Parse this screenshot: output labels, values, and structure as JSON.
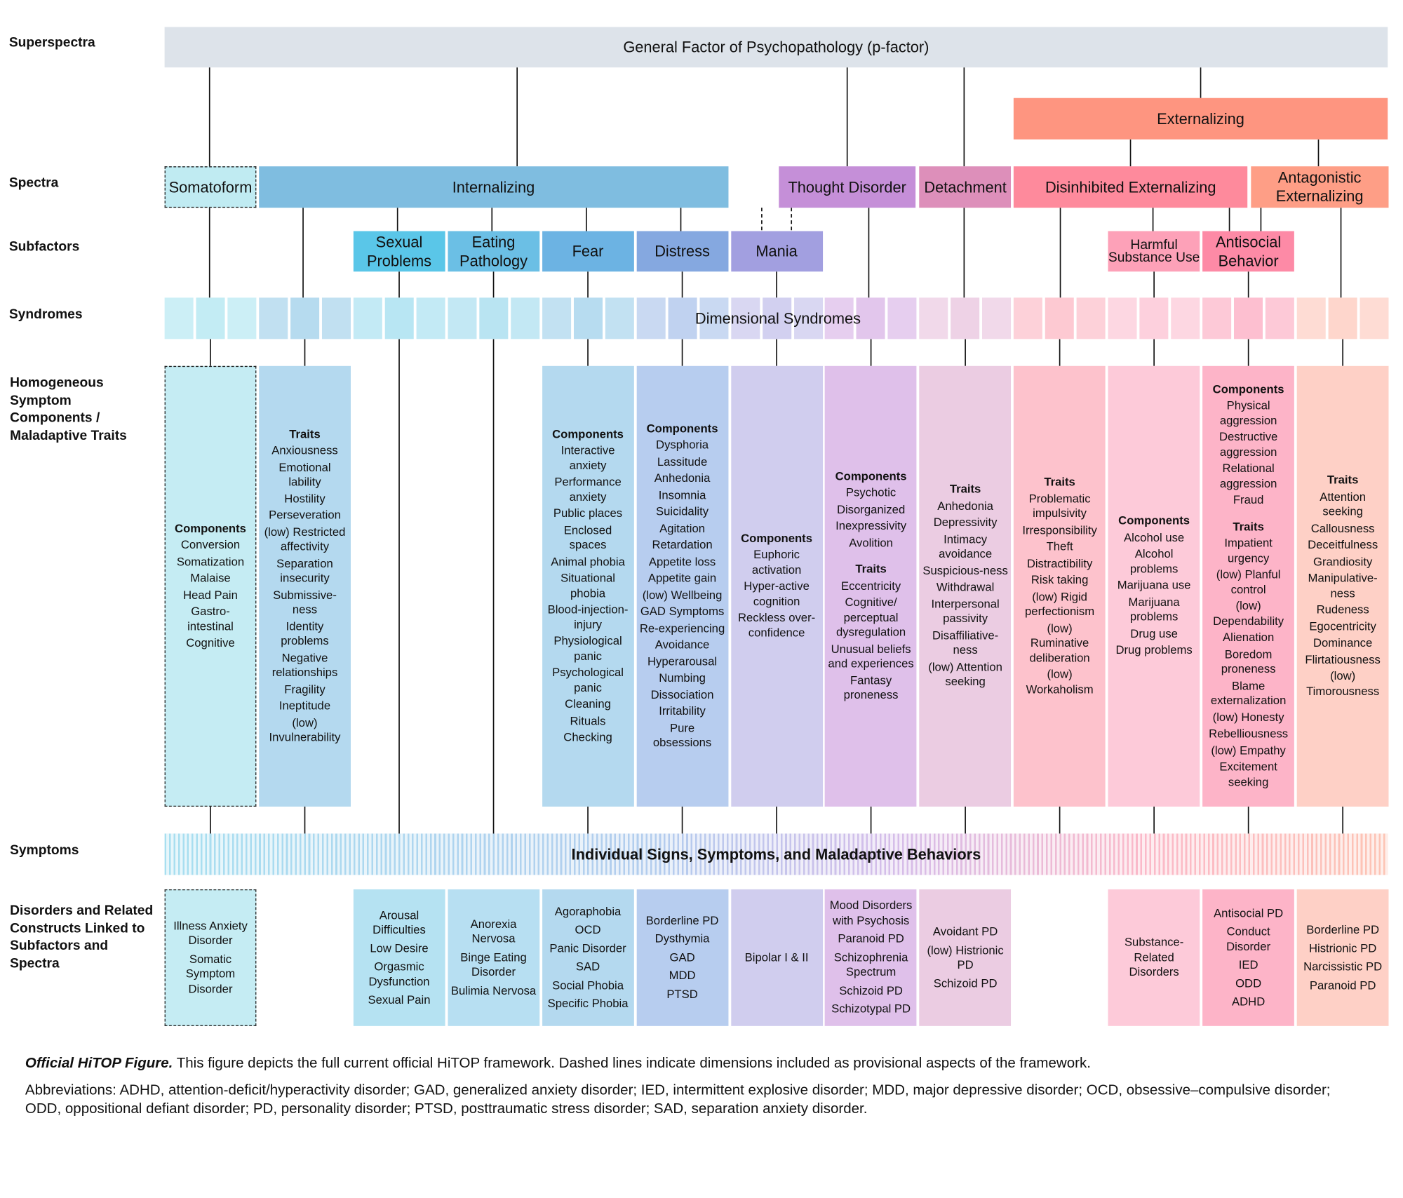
{
  "row_labels": [
    "Superspectra",
    "Spectra",
    "Subfactors",
    "Syndromes",
    "Homogeneous Symptom Components / Maladaptive Traits",
    "Symptoms",
    "Disorders and Related Constructs Linked to Subfactors and Spectra"
  ],
  "superspectra": {
    "general": "General Factor of Psychopathology (p-factor)",
    "externalizing": "Externalizing"
  },
  "spectra": [
    "Somatoform",
    "Internalizing",
    "Thought Disorder",
    "Detachment",
    "Disinhibited Externalizing",
    "Antagonistic Externalizing"
  ],
  "subfactors": [
    "Sexual Problems",
    "Eating Pathology",
    "Fear",
    "Distress",
    "Mania",
    "Harmful Substance Use",
    "Antisocial Behavior"
  ],
  "syndromes": "Dimensional Syndromes",
  "components": [
    {
      "groups": [
        {
          "heading": "Components",
          "items": [
            "Conversion",
            "Somatization",
            "Malaise",
            "Head Pain",
            "Gastro-intestinal",
            "Cognitive"
          ]
        }
      ]
    },
    {
      "groups": [
        {
          "heading": "Traits",
          "items": [
            "Anxiousness",
            "Emotional lability",
            "Hostility",
            "Perseveration",
            "(low) Restricted affectivity",
            "Separation insecurity",
            "Submissive-ness",
            "Identity problems",
            "Negative relationships",
            "Fragility",
            "Ineptitude",
            "(low) Invulnerability"
          ]
        }
      ]
    },
    {
      "groups": [
        {
          "heading": "Components",
          "items": [
            "Interactive anxiety",
            "Performance anxiety",
            "Public places",
            "Enclosed spaces",
            "Animal phobia",
            "Situational phobia",
            "Blood-injection-injury",
            "Physiological panic",
            "Psychological panic",
            "Cleaning",
            "Rituals",
            "Checking"
          ]
        }
      ]
    },
    {
      "groups": [
        {
          "heading": "Components",
          "items": [
            "Dysphoria",
            "Lassitude",
            "Anhedonia",
            "Insomnia",
            "Suicidality",
            "Agitation",
            "Retardation",
            "Appetite loss",
            "Appetite gain",
            "(low) Wellbeing",
            "GAD Symptoms",
            "Re-experiencing",
            "Avoidance",
            "Hyperarousal",
            "Numbing",
            "Dissociation",
            "Irritability",
            "Pure obsessions"
          ]
        }
      ]
    },
    {
      "groups": [
        {
          "heading": "Components",
          "items": [
            "Euphoric activation",
            "Hyper-active cognition",
            "Reckless over-confidence"
          ]
        }
      ]
    },
    {
      "groups": [
        {
          "heading": "Components",
          "items": [
            "Psychotic",
            "Disorganized",
            "Inexpressivity",
            "Avolition"
          ]
        },
        {
          "heading": "Traits",
          "items": [
            "Eccentricity",
            "Cognitive/ perceptual dysregulation",
            "Unusual beliefs and experiences",
            "Fantasy proneness"
          ]
        }
      ]
    },
    {
      "groups": [
        {
          "heading": "Traits",
          "items": [
            "Anhedonia",
            "Depressivity",
            "Intimacy avoidance",
            "Suspicious-ness",
            "Withdrawal",
            "Interpersonal passivity",
            "Disaffiliative-ness",
            "(low) Attention seeking"
          ]
        }
      ]
    },
    {
      "groups": [
        {
          "heading": "Traits",
          "items": [
            "Problematic impulsivity",
            "Irresponsibility",
            "Theft",
            "Distractibility",
            "Risk taking",
            "(low) Rigid perfectionism",
            "(low) Ruminative deliberation",
            "(low) Workaholism"
          ]
        }
      ]
    },
    {
      "groups": [
        {
          "heading": "Components",
          "items": [
            "Alcohol use",
            "Alcohol problems",
            "Marijuana use",
            "Marijuana problems",
            "Drug use",
            "Drug problems"
          ]
        }
      ]
    },
    {
      "groups": [
        {
          "heading": "Components",
          "items": [
            "Physical aggression",
            "Destructive aggression",
            "Relational aggression",
            "Fraud"
          ]
        },
        {
          "heading": "Traits",
          "items": [
            "Impatient urgency",
            "(low) Planful control",
            "(low) Dependability",
            "Alienation",
            "Boredom proneness",
            "Blame externalization",
            "(low) Honesty",
            "Rebelliousness",
            "(low) Empathy",
            "Excitement seeking"
          ]
        }
      ]
    },
    {
      "groups": [
        {
          "heading": "Traits",
          "items": [
            "Attention seeking",
            "Callousness",
            "Deceitfulness",
            "Grandiosity",
            "Manipulative-ness",
            "Rudeness",
            "Egocentricity",
            "Dominance",
            "Flirtatiousness",
            "(low) Timorousness"
          ]
        }
      ]
    }
  ],
  "symptoms": "Individual Signs, Symptoms, and Maladaptive Behaviors",
  "disorders": [
    [
      "Illness Anxiety Disorder",
      "Somatic Symptom Disorder"
    ],
    [
      "Arousal Difficulties",
      "Low Desire",
      "Orgasmic Dysfunction",
      "Sexual Pain"
    ],
    [
      "Anorexia Nervosa",
      "Binge Eating Disorder",
      "Bulimia Nervosa"
    ],
    [
      "Agoraphobia",
      "OCD",
      "Panic Disorder",
      "SAD",
      "Social Phobia",
      "Specific Phobia"
    ],
    [
      "Borderline PD",
      "Dysthymia",
      "GAD",
      "MDD",
      "PTSD"
    ],
    [
      "Bipolar I & II"
    ],
    [
      "Mood Disorders with Psychosis",
      "Paranoid PD",
      "Schizophrenia Spectrum",
      "Schizoid PD",
      "Schizotypal PD"
    ],
    [
      "Avoidant PD",
      "(low) Histrionic PD",
      "Schizoid PD"
    ],
    [
      "Substance-Related Disorders"
    ],
    [
      "Antisocial PD",
      "Conduct Disorder",
      "IED",
      "ODD",
      "ADHD"
    ],
    [
      "Borderline PD",
      "Histrionic PD",
      "Narcissistic PD",
      "Paranoid PD"
    ]
  ],
  "caption": {
    "title": "Official HiTOP Figure.",
    "text": "This figure depicts the full current official HiTOP framework. Dashed lines indicate dimensions included as provisional aspects of the framework.",
    "abbreviations": "Abbreviations: ADHD, attention-deficit/hyperactivity disorder; GAD, generalized anxiety disorder; IED, intermittent explosive disorder; MDD, major depressive disorder; OCD, obsessive–compulsive disorder; ODD, oppositional defiant disorder; PD, personality disorder; PTSD, posttraumatic stress disorder; SAD, separation anxiety disorder."
  }
}
